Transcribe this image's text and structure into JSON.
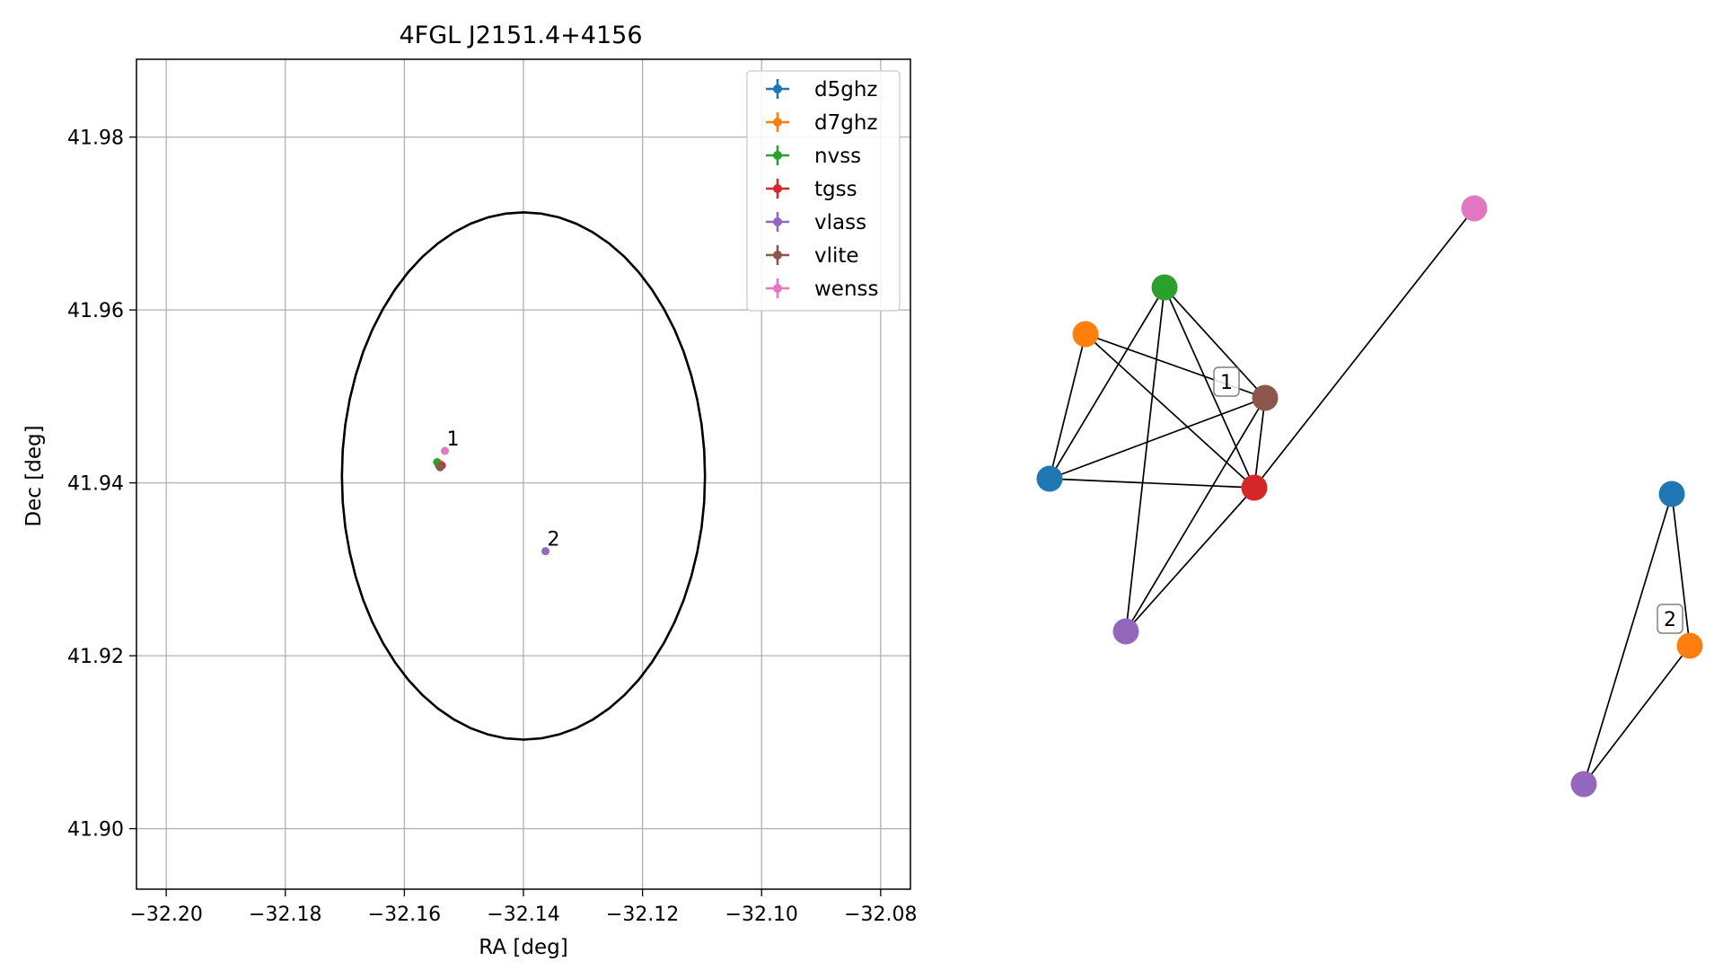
{
  "chart_data": [
    {
      "type": "scatter",
      "title": "4FGL J2151.4+4156",
      "xlabel": "RA [deg]",
      "ylabel": "Dec [deg]",
      "xlim": [
        -32.205,
        -32.075
      ],
      "ylim": [
        41.893,
        41.989
      ],
      "xticks": [
        -32.2,
        -32.18,
        -32.16,
        -32.14,
        -32.12,
        -32.1,
        -32.08
      ],
      "xtick_labels": [
        "−32.20",
        "−32.18",
        "−32.16",
        "−32.14",
        "−32.12",
        "−32.10",
        "−32.08"
      ],
      "yticks": [
        41.9,
        41.92,
        41.94,
        41.96,
        41.98
      ],
      "ytick_labels": [
        "41.90",
        "41.92",
        "41.94",
        "41.96",
        "41.98"
      ],
      "grid": true,
      "legend": "top-right",
      "circle": {
        "center": [
          -32.14,
          41.9408
        ],
        "radius_deg": 0.0305,
        "color": "#000000"
      },
      "series": [
        {
          "name": "d5ghz",
          "color": "#1f77b4",
          "points": [
            [
              -32.1542,
              41.942
            ]
          ]
        },
        {
          "name": "d7ghz",
          "color": "#ff7f0e",
          "points": [
            [
              -32.154,
              41.9422
            ]
          ]
        },
        {
          "name": "nvss",
          "color": "#2ca02c",
          "points": [
            [
              -32.1545,
              41.9424
            ]
          ]
        },
        {
          "name": "tgss",
          "color": "#d62728",
          "points": [
            [
              -32.1537,
              41.942
            ]
          ]
        },
        {
          "name": "vlass",
          "color": "#9467bd",
          "points": [
            [
              -32.1363,
              41.9321
            ]
          ]
        },
        {
          "name": "vlite",
          "color": "#8c564b",
          "points": [
            [
              -32.154,
              41.9418
            ]
          ]
        },
        {
          "name": "wenss",
          "color": "#e377c2",
          "points": [
            [
              -32.1532,
              41.9437
            ]
          ]
        }
      ],
      "annotations": [
        {
          "text": "1",
          "x": -32.1532,
          "y": 41.9437
        },
        {
          "text": "2",
          "x": -32.1363,
          "y": 41.9321
        }
      ]
    },
    {
      "type": "network",
      "clusters": [
        {
          "label": "1",
          "nodes": [
            {
              "id": "d5ghz",
              "color": "#1f77b4"
            },
            {
              "id": "d7ghz",
              "color": "#ff7f0e"
            },
            {
              "id": "nvss",
              "color": "#2ca02c"
            },
            {
              "id": "tgss",
              "color": "#d62728"
            },
            {
              "id": "vlass",
              "color": "#9467bd"
            },
            {
              "id": "vlite",
              "color": "#8c564b"
            },
            {
              "id": "wenss",
              "color": "#e377c2"
            }
          ],
          "edges": [
            [
              "d5ghz",
              "d7ghz"
            ],
            [
              "d5ghz",
              "nvss"
            ],
            [
              "d5ghz",
              "vlite"
            ],
            [
              "d5ghz",
              "tgss"
            ],
            [
              "d7ghz",
              "vlite"
            ],
            [
              "d7ghz",
              "tgss"
            ],
            [
              "nvss",
              "vlite"
            ],
            [
              "nvss",
              "tgss"
            ],
            [
              "nvss",
              "vlass"
            ],
            [
              "tgss",
              "vlite"
            ],
            [
              "tgss",
              "vlass"
            ],
            [
              "tgss",
              "wenss"
            ],
            [
              "vlite",
              "vlass"
            ]
          ]
        },
        {
          "label": "2",
          "nodes": [
            {
              "id": "d5ghz",
              "color": "#1f77b4"
            },
            {
              "id": "d7ghz",
              "color": "#ff7f0e"
            },
            {
              "id": "vlass",
              "color": "#9467bd"
            }
          ],
          "edges": [
            [
              "d5ghz",
              "d7ghz"
            ],
            [
              "d5ghz",
              "vlass"
            ],
            [
              "d7ghz",
              "vlass"
            ]
          ]
        }
      ]
    }
  ]
}
